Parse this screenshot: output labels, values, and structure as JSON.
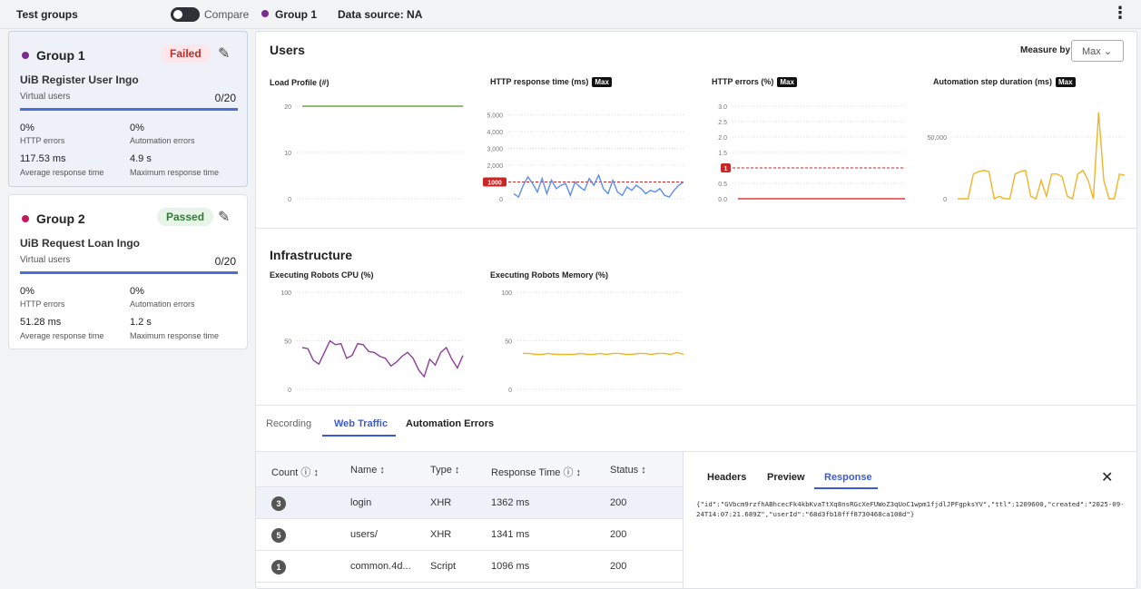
{
  "topbar": {
    "title": "Test groups",
    "compare_label": "Compare",
    "active_group": "Group 1",
    "data_source": "Data source:  NA",
    "more_icon": "more-vertical-icon"
  },
  "groups": [
    {
      "name": "Group 1",
      "color": "#7b2d8e",
      "status": "Failed",
      "test_name": "UiB Register User Ingo",
      "vu_label": "Virtual users",
      "vu_count": "0/20",
      "http_errors": "0%",
      "http_errors_label": "HTTP errors",
      "auto_errors": "0%",
      "auto_errors_label": "Automation errors",
      "avg_rt": "117.53 ms",
      "avg_rt_label": "Average response time",
      "max_rt": "4.9 s",
      "max_rt_label": "Maximum response time"
    },
    {
      "name": "Group 2",
      "color": "#c2185b",
      "status": "Passed",
      "test_name": "UiB Request Loan Ingo",
      "vu_label": "Virtual users",
      "vu_count": "0/20",
      "http_errors": "0%",
      "http_errors_label": "HTTP errors",
      "auto_errors": "0%",
      "auto_errors_label": "Automation errors",
      "avg_rt": "51.28 ms",
      "avg_rt_label": "Average response time",
      "max_rt": "1.2 s",
      "max_rt_label": "Maximum response time"
    }
  ],
  "users": {
    "title": "Users",
    "measure_label": "Measure by",
    "measure_value": "Max",
    "charts": {
      "load": "Load Profile (#)",
      "http_rt": "HTTP response time (ms)",
      "http_err": "HTTP errors (%)",
      "auto_step": "Automation step duration (ms)",
      "max_tag": "Max"
    }
  },
  "infra": {
    "title": "Infrastructure",
    "cpu": "Executing Robots CPU (%)",
    "mem": "Executing Robots Memory (%)"
  },
  "tabs": [
    "Recording",
    "Web Traffic",
    "Automation Errors"
  ],
  "table": {
    "headers": [
      "Count ⓘ ↕",
      "Name ↕",
      "Type ↕",
      "Response Time ⓘ ↕",
      "Status ↕"
    ],
    "rows": [
      {
        "count": "3",
        "name": "login",
        "type": "XHR",
        "rt": "1362 ms",
        "status": "200"
      },
      {
        "count": "5",
        "name": "users/",
        "type": "XHR",
        "rt": "1341 ms",
        "status": "200"
      },
      {
        "count": "1",
        "name": "common.4d...",
        "type": "Script",
        "rt": "1096 ms",
        "status": "200"
      }
    ]
  },
  "response_panel": {
    "tabs": [
      "Headers",
      "Preview",
      "Response"
    ],
    "close": "✕",
    "body": "{\"id\":\"GVbcm9rzfhABhcecFk4kbKvaTtXq8nsRGcXeFUWoZ3qUoC1wpm1fjdlJPFgpksYV\",\"ttl\":1209600,\"created\":\"2025-09-24T14:07:21.689Z\",\"userId\":\"68d3fb18fff8730468ca108d\"}"
  },
  "chart_data": [
    {
      "type": "line",
      "title": "Load Profile (#)",
      "yticks": [
        "20",
        "10",
        "0"
      ],
      "ylim": [
        0,
        20
      ],
      "series": [
        {
          "values": [
            20,
            20,
            20,
            20,
            20,
            20,
            20,
            20,
            20,
            20
          ],
          "color": "#6fa83a"
        }
      ]
    },
    {
      "type": "line",
      "title": "HTTP response time (ms)",
      "yticks": [
        "5,000",
        "4,000",
        "3,000",
        "2,000",
        "1,000",
        "0"
      ],
      "ylim": [
        0,
        5500
      ],
      "threshold": {
        "value": 1000,
        "label": "1000",
        "color": "#c62828"
      },
      "series": [
        {
          "values": [
            300,
            100,
            800,
            1300,
            900,
            400,
            1200,
            300,
            1100,
            600,
            800,
            900,
            200,
            1000,
            700,
            500,
            1200,
            800,
            1400,
            600,
            300,
            1100,
            400,
            200,
            700,
            500,
            800,
            600,
            300,
            500,
            400,
            600,
            200,
            100,
            500,
            800,
            1000
          ],
          "color": "#5b8def"
        }
      ]
    },
    {
      "type": "line",
      "title": "HTTP errors (%)",
      "yticks": [
        "3.0",
        "2.5",
        "2.0",
        "1.5",
        "1",
        "0.5",
        "0.0"
      ],
      "ylim": [
        0,
        3
      ],
      "threshold": {
        "value": 1,
        "label": "1",
        "color": "#c62828"
      },
      "series": [
        {
          "values": [
            0,
            0,
            0,
            0,
            0,
            0,
            0,
            0,
            0,
            0
          ],
          "color": "#e53935"
        }
      ]
    },
    {
      "type": "line",
      "title": "Automation step duration (ms)",
      "yticks": [
        "50,000",
        "0"
      ],
      "ylim": [
        0,
        75000
      ],
      "series": [
        {
          "values": [
            0,
            0,
            0,
            20000,
            22000,
            23000,
            22000,
            0,
            2000,
            0,
            0,
            20000,
            22000,
            23000,
            2000,
            0,
            15000,
            2000,
            20000,
            20000,
            18000,
            2000,
            0,
            20000,
            23000,
            15000,
            0,
            70000,
            15000,
            0,
            0,
            20000,
            19000
          ],
          "color": "#f0b429"
        }
      ]
    },
    {
      "type": "line",
      "title": "Executing Robots CPU (%)",
      "yticks": [
        "100",
        "50",
        "0"
      ],
      "ylim": [
        0,
        100
      ],
      "series": [
        {
          "values": [
            43,
            42,
            30,
            26,
            38,
            50,
            46,
            47,
            32,
            35,
            47,
            46,
            39,
            38,
            34,
            32,
            24,
            28,
            34,
            38,
            32,
            20,
            13,
            31,
            25,
            38,
            43,
            31,
            22,
            35
          ],
          "color": "#8e3c99"
        }
      ]
    },
    {
      "type": "line",
      "title": "Executing Robots Memory (%)",
      "yticks": [
        "100",
        "50",
        "0"
      ],
      "ylim": [
        0,
        100
      ],
      "series": [
        {
          "values": [
            37,
            37,
            36,
            36,
            37,
            36,
            36,
            36,
            36,
            37,
            36,
            36,
            37,
            36,
            37,
            37,
            36,
            36,
            37,
            37,
            36,
            37,
            37,
            36,
            38,
            36
          ],
          "color": "#f0b429"
        }
      ]
    }
  ]
}
